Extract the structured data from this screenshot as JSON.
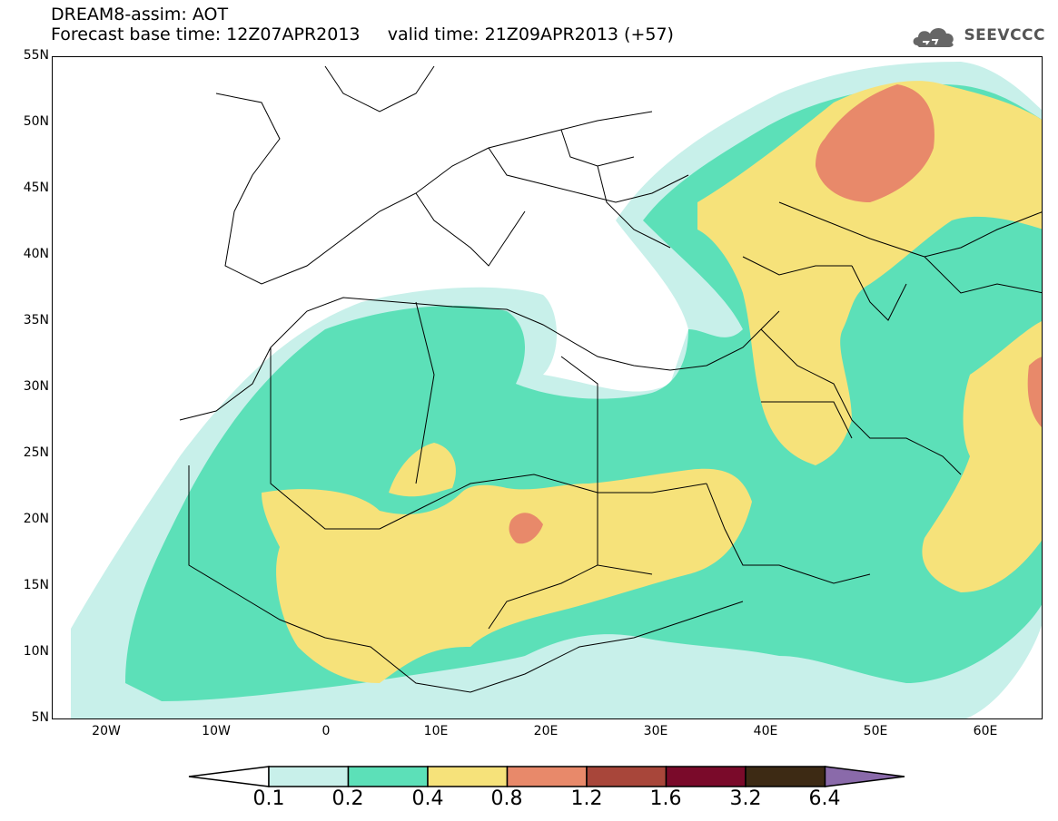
{
  "header": {
    "title_line1": "DREAM8-assim: AOT",
    "title_line2": "Forecast base time: 12Z07APR2013     valid time: 21Z09APR2013 (+57)",
    "logo_text": "SEEVCCC"
  },
  "map": {
    "lat_labels": [
      "55N",
      "50N",
      "45N",
      "40N",
      "35N",
      "30N",
      "25N",
      "20N",
      "15N",
      "10N",
      "5N"
    ],
    "lon_labels": [
      "20W",
      "10W",
      "0",
      "10E",
      "20E",
      "30E",
      "40E",
      "50E",
      "60E"
    ],
    "extent": {
      "lon_min": -25,
      "lon_max": 65,
      "lat_min": 5,
      "lat_max": 55
    }
  },
  "legend": {
    "labels": [
      "0.1",
      "0.2",
      "0.4",
      "0.8",
      "1.2",
      "1.6",
      "3.2",
      "6.4"
    ],
    "colors": [
      "#ffffff",
      "#c8f0ea",
      "#5ce0b8",
      "#f6e27a",
      "#e8896a",
      "#a8463a",
      "#7a0a2a",
      "#3d2a14",
      "#8a6aaa"
    ]
  }
}
